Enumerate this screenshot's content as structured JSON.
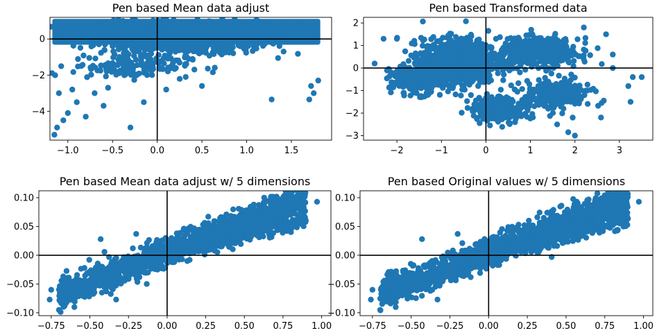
{
  "chart_data": [
    {
      "type": "scatter",
      "title": "Pen based Mean data adjust",
      "xlim": [
        -1.2,
        1.95
      ],
      "ylim": [
        -5.6,
        1.2
      ],
      "xticks": [
        -1.0,
        -0.5,
        0.0,
        0.5,
        1.0,
        1.5
      ],
      "yticks": [
        0,
        -2,
        -4
      ],
      "xtick_labels": [
        "−1.0",
        "−0.5",
        "0.0",
        "0.5",
        "1.0",
        "1.5"
      ],
      "ytick_labels": [
        "0",
        "−2",
        "−4"
      ],
      "color": "#1f77b4",
      "zero_lines": true,
      "grid": false,
      "clusters": [
        {
          "cx": 0.3,
          "cy": 0.0,
          "sx": 0.85,
          "sy": 0.75,
          "n": 900
        },
        {
          "cx": 0.3,
          "cy": 0.6,
          "sx": 0.9,
          "sy": 0.35,
          "n": 500
        },
        {
          "cx": -0.3,
          "cy": -1.5,
          "sx": 0.6,
          "sy": 0.6,
          "n": 150
        }
      ],
      "points": [
        {
          "x": -1.15,
          "y": -5.3
        },
        {
          "x": -1.12,
          "y": -4.9
        },
        {
          "x": -1.05,
          "y": -4.5
        },
        {
          "x": -0.8,
          "y": -4.3
        },
        {
          "x": -0.3,
          "y": -4.9
        },
        {
          "x": -0.6,
          "y": -3.7
        },
        {
          "x": -0.9,
          "y": -3.5
        },
        {
          "x": -1.1,
          "y": -3.0
        },
        {
          "x": -0.15,
          "y": -3.5
        },
        {
          "x": -0.55,
          "y": -2.7
        },
        {
          "x": 1.28,
          "y": -3.35
        },
        {
          "x": 1.7,
          "y": -3.35
        },
        {
          "x": 1.75,
          "y": -3.0
        },
        {
          "x": 1.72,
          "y": -2.6
        },
        {
          "x": 1.8,
          "y": -2.3
        },
        {
          "x": -0.95,
          "y": -2.8
        },
        {
          "x": 0.1,
          "y": -2.8
        },
        {
          "x": 0.5,
          "y": -2.6
        },
        {
          "x": -1.0,
          "y": -4.1
        },
        {
          "x": -0.7,
          "y": -3.0
        }
      ],
      "band": {
        "x0": -1.15,
        "x1": 1.8,
        "y0": -0.2,
        "y1": 1.0
      }
    },
    {
      "type": "scatter",
      "title": "Pen based Transformed data",
      "xlim": [
        -2.75,
        3.75
      ],
      "ylim": [
        -3.2,
        2.25
      ],
      "xticks": [
        -2,
        -1,
        0,
        1,
        2,
        3
      ],
      "yticks": [
        2,
        1,
        0,
        -1,
        -2,
        -3
      ],
      "xtick_labels": [
        "−2",
        "−1",
        "0",
        "1",
        "2",
        "3"
      ],
      "ytick_labels": [
        "2",
        "1",
        "0",
        "−1",
        "−2",
        "−3"
      ],
      "color": "#1f77b4",
      "zero_lines": true,
      "grid": false,
      "clusters": [
        {
          "cx": -0.6,
          "cy": 0.3,
          "sx": 0.75,
          "sy": 0.9,
          "n": 1100
        },
        {
          "cx": 1.2,
          "cy": 0.7,
          "sx": 0.8,
          "sy": 0.55,
          "n": 500
        },
        {
          "cx": 1.6,
          "cy": -1.2,
          "sx": 0.7,
          "sy": 0.6,
          "n": 250
        },
        {
          "cx": -1.6,
          "cy": -0.5,
          "sx": 0.5,
          "sy": 0.6,
          "n": 250
        },
        {
          "cx": 0.3,
          "cy": -1.8,
          "sx": 0.6,
          "sy": 0.5,
          "n": 250
        }
      ],
      "points": [
        {
          "x": -2.3,
          "y": 1.3
        },
        {
          "x": -2.0,
          "y": 1.3
        },
        {
          "x": -2.5,
          "y": 0.2
        },
        {
          "x": 3.5,
          "y": -0.4
        },
        {
          "x": 3.3,
          "y": -0.4
        },
        {
          "x": 3.2,
          "y": -0.8
        },
        {
          "x": 2.85,
          "y": 0.0
        },
        {
          "x": 2.85,
          "y": 0.6
        },
        {
          "x": 2.7,
          "y": 1.5
        },
        {
          "x": 2.2,
          "y": 1.8
        },
        {
          "x": 2.6,
          "y": -1.55
        },
        {
          "x": 2.0,
          "y": -3.0
        },
        {
          "x": 1.85,
          "y": -2.85
        },
        {
          "x": 1.6,
          "y": -2.5
        },
        {
          "x": 1.95,
          "y": -2.2
        }
      ]
    },
    {
      "type": "scatter",
      "title": "Pen based Mean data adjust w/ 5 dimensions",
      "xlim": [
        -0.83,
        1.06
      ],
      "ylim": [
        -0.105,
        0.112
      ],
      "xticks": [
        -0.75,
        -0.5,
        -0.25,
        0.0,
        0.25,
        0.5,
        0.75,
        1.0
      ],
      "yticks": [
        0.1,
        0.05,
        0.0,
        -0.05,
        -0.1
      ],
      "xtick_labels": [
        "−0.75",
        "−0.50",
        "−0.25",
        "0.00",
        "0.25",
        "0.50",
        "0.75",
        "1.00"
      ],
      "ytick_labels": [
        "0.10",
        "0.05",
        "0.00",
        "−0.05",
        "−0.10"
      ],
      "color": "#1f77b4",
      "zero_lines": true,
      "grid": false,
      "linear_clouds": [
        {
          "x0": -0.7,
          "x1": 0.9,
          "slope": 0.105,
          "intercept": 0.005,
          "spread": 0.022,
          "n": 1600
        },
        {
          "x0": 0.2,
          "x1": 0.9,
          "slope": 0.07,
          "intercept": 0.0,
          "spread": 0.012,
          "n": 250
        }
      ],
      "points": [
        {
          "x": -0.76,
          "y": -0.077
        },
        {
          "x": -0.7,
          "y": -0.095
        },
        {
          "x": -0.6,
          "y": -0.09
        },
        {
          "x": -0.43,
          "y": 0.028
        },
        {
          "x": 0.97,
          "y": 0.093
        },
        {
          "x": 0.89,
          "y": 0.103
        },
        {
          "x": 0.83,
          "y": 0.098
        },
        {
          "x": 0.88,
          "y": 0.057
        },
        {
          "x": 0.83,
          "y": 0.058
        },
        {
          "x": -0.2,
          "y": 0.037
        },
        {
          "x": -0.33,
          "y": -0.077
        },
        {
          "x": -0.75,
          "y": -0.06
        }
      ]
    },
    {
      "type": "scatter",
      "title": "Pen based Original values w/ 5 dimensions",
      "xlim": [
        -0.83,
        1.06
      ],
      "ylim": [
        -0.105,
        0.112
      ],
      "xticks": [
        -0.75,
        -0.5,
        -0.25,
        0.0,
        0.25,
        0.5,
        0.75,
        1.0
      ],
      "yticks": [
        0.1,
        0.05,
        0.0,
        -0.05,
        -0.1
      ],
      "xtick_labels": [
        "−0.75",
        "−0.50",
        "−0.25",
        "0.00",
        "0.25",
        "0.50",
        "0.75",
        "1.00"
      ],
      "ytick_labels": [
        "0.10",
        "0.05",
        "0.00",
        "−0.05",
        "−0.10"
      ],
      "color": "#1f77b4",
      "zero_lines": true,
      "grid": false,
      "linear_clouds": [
        {
          "x0": -0.7,
          "x1": 0.9,
          "slope": 0.105,
          "intercept": 0.005,
          "spread": 0.022,
          "n": 1600
        },
        {
          "x0": 0.2,
          "x1": 0.9,
          "slope": 0.07,
          "intercept": 0.0,
          "spread": 0.012,
          "n": 250
        }
      ],
      "points": [
        {
          "x": -0.76,
          "y": -0.077
        },
        {
          "x": -0.7,
          "y": -0.095
        },
        {
          "x": -0.6,
          "y": -0.09
        },
        {
          "x": -0.43,
          "y": 0.028
        },
        {
          "x": 0.97,
          "y": 0.093
        },
        {
          "x": 0.89,
          "y": 0.103
        },
        {
          "x": 0.83,
          "y": 0.098
        },
        {
          "x": 0.88,
          "y": 0.057
        },
        {
          "x": 0.83,
          "y": 0.058
        },
        {
          "x": -0.2,
          "y": 0.037
        },
        {
          "x": -0.33,
          "y": -0.077
        },
        {
          "x": -0.75,
          "y": -0.06
        }
      ]
    }
  ]
}
